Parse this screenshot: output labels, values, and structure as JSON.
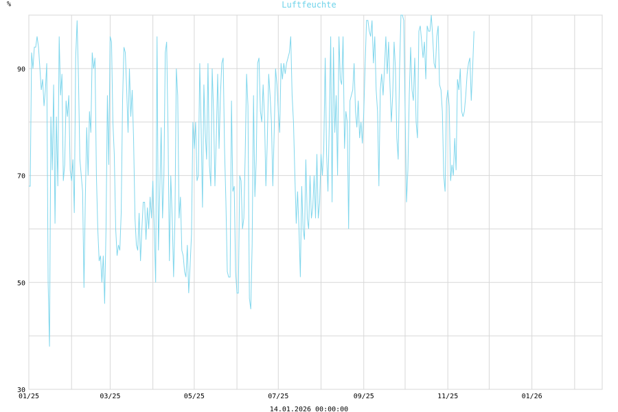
{
  "chart_data": {
    "type": "line",
    "title": "Luftfeuchte",
    "ylabel": "%",
    "footer": "14.01.2026 00:00:00",
    "ylim": [
      30,
      100
    ],
    "yticks": [
      30,
      50,
      70,
      90
    ],
    "xlim": [
      "2025-01-01",
      "2026-02-21"
    ],
    "xticks": [
      {
        "label": "01/25",
        "date": "2025-01-01"
      },
      {
        "label": "03/25",
        "date": "2025-03-01"
      },
      {
        "label": "05/25",
        "date": "2025-05-01"
      },
      {
        "label": "07/25",
        "date": "2025-07-01"
      },
      {
        "label": "09/25",
        "date": "2025-09-01"
      },
      {
        "label": "11/25",
        "date": "2025-11-01"
      },
      {
        "label": "01/26",
        "date": "2026-01-01"
      }
    ],
    "x_gridlines": [
      "2025-01-01",
      "2025-02-01",
      "2025-03-01",
      "2025-04-01",
      "2025-05-01",
      "2025-06-01",
      "2025-07-01",
      "2025-08-01",
      "2025-09-01",
      "2025-10-01",
      "2025-11-01",
      "2025-12-01",
      "2026-01-01",
      "2026-02-01"
    ],
    "grid": true,
    "colors": {
      "series": "#7fd6ec",
      "title": "#6fd3ea",
      "grid": "#d7d7d7"
    },
    "series": [
      {
        "start_date": "2025-01-01",
        "values": [
          68,
          68,
          93,
          90,
          94,
          94,
          96,
          94,
          90,
          86,
          88,
          83,
          86,
          91,
          50,
          38,
          81,
          71,
          87,
          61,
          81,
          68,
          96,
          85,
          89,
          69,
          72,
          84,
          81,
          85,
          71,
          69,
          73,
          63,
          92,
          99,
          88,
          73,
          70,
          67,
          49,
          66,
          79,
          70,
          82,
          78,
          93,
          90,
          92,
          70,
          60,
          54,
          55,
          50,
          55,
          46,
          60,
          85,
          72,
          96,
          95,
          80,
          74,
          60,
          55,
          57,
          56,
          63,
          84,
          94,
          93,
          86,
          78,
          90,
          81,
          86,
          77,
          62,
          57,
          56,
          63,
          54,
          60,
          65,
          65,
          58,
          64,
          60,
          66,
          62,
          69,
          60,
          50,
          96,
          56,
          67,
          79,
          62,
          70,
          93,
          95,
          78,
          54,
          70,
          62,
          51,
          62,
          90,
          85,
          62,
          66,
          56,
          55,
          52,
          51,
          57,
          48,
          53,
          59,
          80,
          75,
          80,
          69,
          70,
          91,
          79,
          64,
          87,
          78,
          73,
          91,
          72,
          68,
          90,
          82,
          68,
          77,
          89,
          75,
          85,
          91,
          92,
          75,
          65,
          52,
          51,
          51,
          84,
          67,
          68,
          52,
          48,
          48,
          70,
          69,
          60,
          62,
          74,
          89,
          83,
          47,
          45,
          57,
          85,
          66,
          73,
          91,
          92,
          82,
          80,
          87,
          81,
          68,
          76,
          89,
          85,
          80,
          68,
          78,
          90,
          87,
          82,
          78,
          91,
          88,
          91,
          89,
          91,
          92,
          93,
          96,
          85,
          80,
          70,
          61,
          67,
          60,
          51,
          68,
          60,
          58,
          73,
          62,
          60,
          70,
          62,
          64,
          70,
          62,
          74,
          62,
          65,
          74,
          70,
          75,
          92,
          74,
          67,
          80,
          96,
          65,
          94,
          78,
          85,
          70,
          96,
          88,
          87,
          96,
          75,
          82,
          80,
          60,
          84,
          85,
          86,
          91,
          82,
          79,
          84,
          77,
          80,
          76,
          82,
          91,
          99,
          99,
          97,
          96,
          99,
          91,
          96,
          86,
          82,
          68,
          86,
          89,
          85,
          90,
          96,
          89,
          95,
          87,
          80,
          85,
          95,
          90,
          77,
          73,
          90,
          100,
          100,
          99,
          82,
          65,
          71,
          85,
          94,
          86,
          84,
          92,
          80,
          77,
          97,
          98,
          95,
          92,
          95,
          88,
          98,
          97,
          97,
          100,
          96,
          91,
          90,
          96,
          98,
          87,
          86,
          82,
          70,
          67,
          84,
          86,
          83,
          69,
          72,
          70,
          77,
          71,
          88,
          86,
          90,
          82,
          81,
          82,
          85,
          89,
          91,
          92,
          84,
          90,
          97
        ]
      }
    ]
  }
}
